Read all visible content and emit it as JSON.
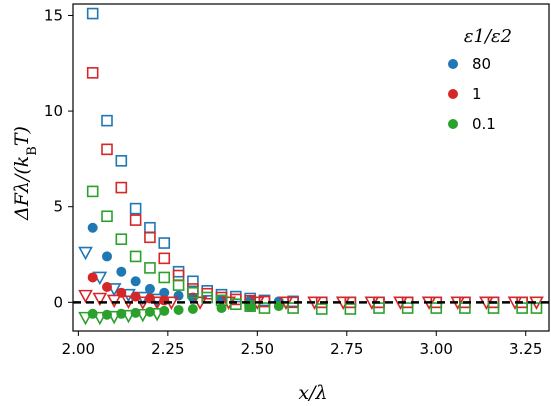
{
  "chart_data": {
    "type": "scatter",
    "xlabel": "x/λ",
    "ylabel": "ΔFλ/(k_BT)",
    "xlim": [
      1.985,
      3.315
    ],
    "ylim": [
      -1.5,
      15.6
    ],
    "xticks": [
      2.0,
      2.25,
      2.5,
      2.75,
      3.0,
      3.25
    ],
    "xtick_labels": [
      "2.00",
      "2.25",
      "2.50",
      "2.75",
      "3.00",
      "3.25"
    ],
    "yticks": [
      0,
      5,
      10,
      15
    ],
    "ytick_labels": [
      "0",
      "5",
      "10",
      "15"
    ],
    "reference_line": {
      "y": 0,
      "style": "dashed"
    },
    "grid": false,
    "legend": {
      "title": "ε1/ε2",
      "placement": "top-right",
      "entries": [
        "80",
        "1",
        "0.1"
      ]
    },
    "colors": {
      "80": "#1f77b4",
      "1": "#d62728",
      "0.1": "#2ca02c"
    },
    "series": [
      {
        "name": "80",
        "marker": "square",
        "x": [
          2.04,
          2.08,
          2.12,
          2.16,
          2.2,
          2.24,
          2.28,
          2.32,
          2.36,
          2.4,
          2.44,
          2.48,
          2.52,
          2.6,
          2.68,
          2.76,
          2.84,
          2.92,
          3.0,
          3.08,
          3.16,
          3.24
        ],
        "y": [
          15.1,
          9.5,
          7.4,
          4.9,
          3.9,
          3.1,
          1.6,
          1.1,
          0.6,
          0.4,
          0.3,
          0.2,
          0.1,
          0.05,
          0.0,
          0.0,
          0.0,
          0.0,
          0.0,
          0.0,
          0.0,
          0.0
        ]
      },
      {
        "name": "80",
        "marker": "circle",
        "x": [
          2.04,
          2.08,
          2.12,
          2.16,
          2.2,
          2.24,
          2.28,
          2.32,
          2.4,
          2.48,
          2.56
        ],
        "y": [
          3.9,
          2.4,
          1.6,
          1.1,
          0.7,
          0.5,
          0.35,
          0.25,
          0.15,
          0.1,
          0.05
        ]
      },
      {
        "name": "80",
        "marker": "triangle-down",
        "x": [
          2.02,
          2.06,
          2.1,
          2.14,
          2.18,
          2.22
        ],
        "y": [
          2.6,
          1.3,
          0.7,
          0.4,
          0.25,
          0.15
        ]
      },
      {
        "name": "1",
        "marker": "square",
        "x": [
          2.04,
          2.08,
          2.12,
          2.16,
          2.2,
          2.24,
          2.28,
          2.32,
          2.36,
          2.4,
          2.44,
          2.48,
          2.52,
          2.6,
          2.68,
          2.76,
          2.84,
          2.92,
          3.0,
          3.08,
          3.16,
          3.24
        ],
        "y": [
          12.0,
          8.0,
          6.0,
          4.3,
          3.4,
          2.3,
          1.4,
          0.7,
          0.45,
          0.25,
          0.15,
          0.08,
          0.04,
          0.0,
          0.0,
          0.0,
          0.0,
          0.0,
          0.0,
          0.0,
          0.0,
          0.0
        ]
      },
      {
        "name": "1",
        "marker": "circle",
        "x": [
          2.04,
          2.08,
          2.12,
          2.16,
          2.2,
          2.24
        ],
        "y": [
          1.3,
          0.8,
          0.5,
          0.3,
          0.2,
          0.1
        ]
      },
      {
        "name": "1",
        "marker": "triangle-down",
        "x": [
          2.02,
          2.06,
          2.1,
          2.14,
          2.18,
          2.22,
          2.26,
          2.34,
          2.42,
          2.5,
          2.58,
          2.66,
          2.74,
          2.82,
          2.9,
          2.98,
          3.06,
          3.14,
          3.22,
          3.28
        ],
        "y": [
          0.35,
          0.2,
          0.1,
          0.05,
          0.0,
          0.0,
          0.0,
          0.0,
          0.0,
          0.0,
          0.0,
          0.0,
          0.0,
          0.0,
          0.0,
          0.0,
          0.0,
          0.0,
          0.0,
          0.0
        ]
      },
      {
        "name": "0.1",
        "marker": "square",
        "x": [
          2.04,
          2.08,
          2.12,
          2.16,
          2.2,
          2.24,
          2.28,
          2.32,
          2.36,
          2.4,
          2.44,
          2.48,
          2.52,
          2.6,
          2.68,
          2.76,
          2.84,
          2.92,
          3.0,
          3.08,
          3.16,
          3.24,
          3.28
        ],
        "y": [
          5.8,
          4.5,
          3.3,
          2.4,
          1.8,
          1.3,
          0.9,
          0.5,
          0.25,
          0.1,
          -0.1,
          -0.2,
          -0.3,
          -0.3,
          -0.35,
          -0.35,
          -0.3,
          -0.3,
          -0.3,
          -0.3,
          -0.3,
          -0.3,
          -0.3
        ]
      },
      {
        "name": "0.1",
        "marker": "circle",
        "x": [
          2.04,
          2.08,
          2.12,
          2.16,
          2.2,
          2.24,
          2.28,
          2.32,
          2.4,
          2.48,
          2.56
        ],
        "y": [
          -0.6,
          -0.65,
          -0.6,
          -0.55,
          -0.5,
          -0.45,
          -0.4,
          -0.35,
          -0.3,
          -0.25,
          -0.2
        ]
      },
      {
        "name": "0.1",
        "marker": "triangle-down",
        "x": [
          2.02,
          2.06,
          2.1,
          2.14,
          2.18,
          2.22
        ],
        "y": [
          -0.8,
          -0.8,
          -0.75,
          -0.7,
          -0.65,
          -0.6
        ]
      }
    ]
  }
}
